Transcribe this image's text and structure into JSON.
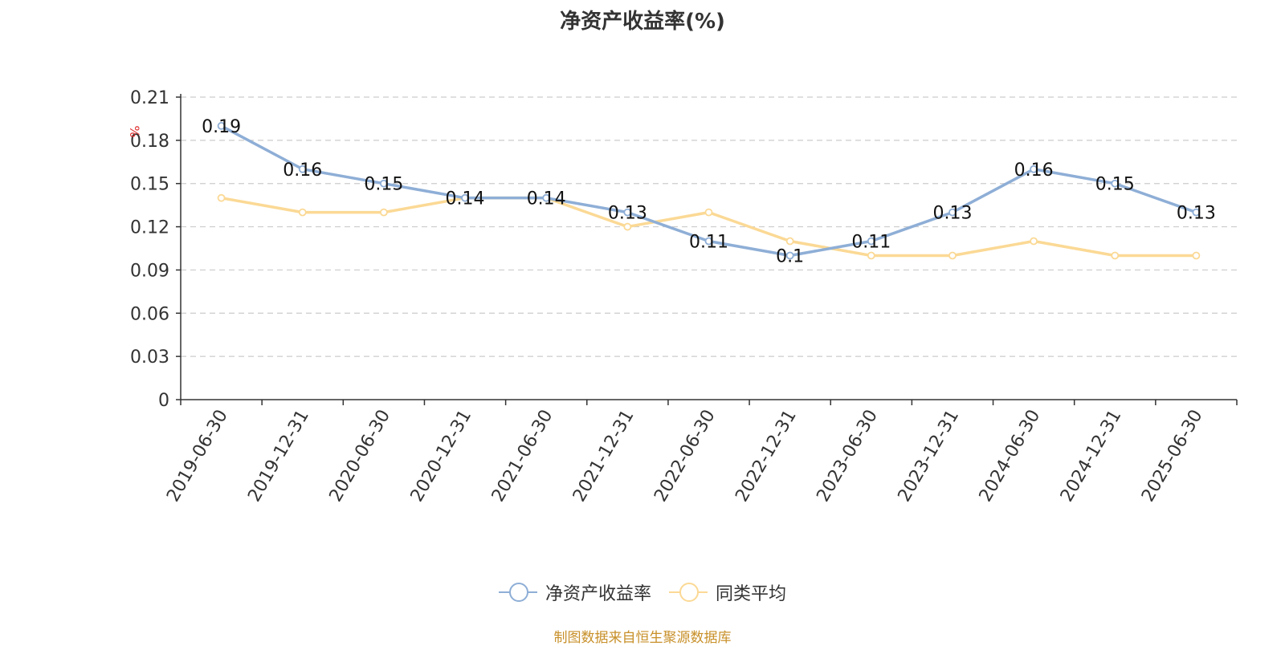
{
  "title": "净资产收益率(%)",
  "source": "制图数据来自恒生聚源数据库",
  "colors": {
    "source_text": "#c8902a",
    "unit_text": "#e03030"
  },
  "chart_data": {
    "type": "line",
    "title": "净资产收益率(%)",
    "ylabel": "%",
    "categories": [
      "2019-06-30",
      "2019-12-31",
      "2020-06-30",
      "2020-12-31",
      "2021-06-30",
      "2021-12-31",
      "2022-06-30",
      "2022-12-31",
      "2023-06-30",
      "2023-12-31",
      "2024-06-30",
      "2024-12-31",
      "2025-06-30"
    ],
    "y_ticks": [
      "0",
      "0.03",
      "0.06",
      "0.09",
      "0.12",
      "0.15",
      "0.18",
      "0.21"
    ],
    "ylim": [
      0,
      0.21
    ],
    "grid": true,
    "legend_position": "bottom-center",
    "series": [
      {
        "name": "净资产收益率",
        "color": "#8eaed6",
        "show_labels": true,
        "values": [
          0.19,
          0.16,
          0.15,
          0.14,
          0.14,
          0.13,
          0.11,
          0.1,
          0.11,
          0.13,
          0.16,
          0.15,
          0.13
        ],
        "labels": [
          "0.19",
          "0.16",
          "0.15",
          "0.14",
          "0.14",
          "0.13",
          "0.11",
          "0.1",
          "0.11",
          "0.13",
          "0.16",
          "0.15",
          "0.13"
        ]
      },
      {
        "name": "同类平均",
        "color": "#fbd995",
        "show_labels": false,
        "values": [
          0.14,
          0.13,
          0.13,
          0.14,
          0.14,
          0.12,
          0.13,
          0.11,
          0.1,
          0.1,
          0.11,
          0.1,
          0.1
        ]
      }
    ]
  }
}
